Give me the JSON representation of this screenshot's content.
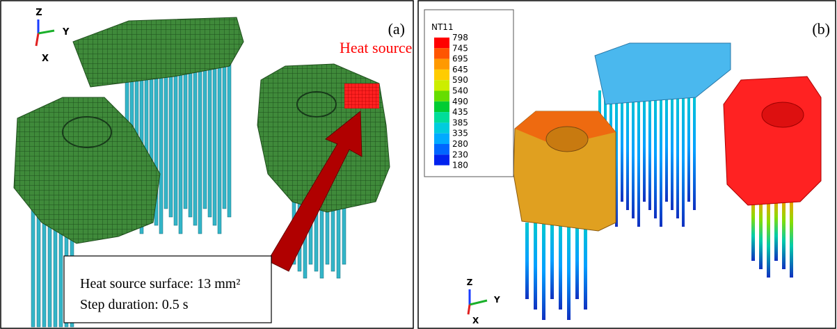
{
  "panel_a": {
    "tag": "(a)",
    "heat_source_label": "Heat source",
    "axes": {
      "z": "Z",
      "y": "Y",
      "x": "X"
    },
    "note": [
      "Heat source surface: 13 mm²",
      "Step duration: 0.5 s"
    ]
  },
  "panel_b": {
    "tag": "(b)",
    "axes": {
      "z": "Z",
      "y": "Y",
      "x": "X"
    },
    "legend": {
      "title": "NT11",
      "labels": [
        "798",
        "745",
        "695",
        "645",
        "590",
        "540",
        "490",
        "435",
        "385",
        "335",
        "280",
        "230",
        "180"
      ],
      "colors": [
        "#ff0000",
        "#ff5500",
        "#ff9900",
        "#ffcc00",
        "#ccee00",
        "#66dd00",
        "#00cc33",
        "#00dd99",
        "#00ccdd",
        "#00aaff",
        "#0066ff",
        "#0022ee"
      ]
    }
  }
}
